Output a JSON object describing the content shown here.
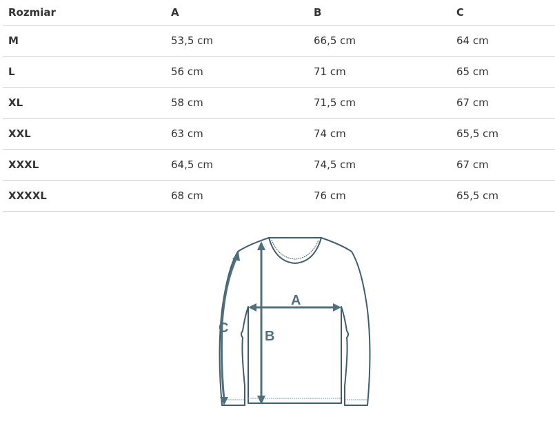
{
  "table": {
    "headers": [
      "Rozmiar",
      "A",
      "B",
      "C"
    ],
    "rows": [
      [
        "M",
        "53,5 cm",
        "66,5 cm",
        "64 cm"
      ],
      [
        "L",
        "56 cm",
        "71 cm",
        "65 cm"
      ],
      [
        "XL",
        "58 cm",
        "71,5 cm",
        "67 cm"
      ],
      [
        "XXL",
        "63 cm",
        "74 cm",
        "65,5 cm"
      ],
      [
        "XXXL",
        "64,5 cm",
        "74,5 cm",
        "67 cm"
      ],
      [
        "XXXXL",
        "68 cm",
        "76 cm",
        "65,5 cm"
      ]
    ]
  },
  "diagram": {
    "labels": {
      "a": "A",
      "b": "B",
      "c": "C"
    },
    "line_color": "#3f5d6a",
    "arrow_color": "#50707c"
  }
}
